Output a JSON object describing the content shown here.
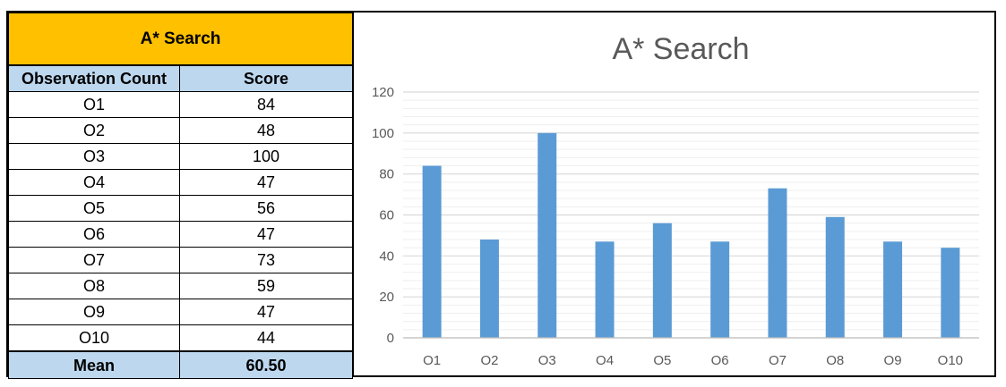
{
  "table": {
    "title": "A* Search",
    "headers": [
      "Observation Count",
      "Score"
    ],
    "rows": [
      {
        "label": "O1",
        "score": "84"
      },
      {
        "label": "O2",
        "score": "48"
      },
      {
        "label": "O3",
        "score": "100"
      },
      {
        "label": "O4",
        "score": "47"
      },
      {
        "label": "O5",
        "score": "56"
      },
      {
        "label": "O6",
        "score": "47"
      },
      {
        "label": "O7",
        "score": "73"
      },
      {
        "label": "O8",
        "score": "59"
      },
      {
        "label": "O9",
        "score": "47"
      },
      {
        "label": "O10",
        "score": "44"
      }
    ],
    "footer": {
      "label": "Mean",
      "value": "60.50"
    }
  },
  "chart_data": {
    "type": "bar",
    "title": "A* Search",
    "categories": [
      "O1",
      "O2",
      "O3",
      "O4",
      "O5",
      "O6",
      "O7",
      "O8",
      "O9",
      "O10"
    ],
    "values": [
      84,
      48,
      100,
      47,
      56,
      47,
      73,
      59,
      47,
      44
    ],
    "ylim": [
      0,
      120
    ],
    "yticks": [
      0,
      20,
      40,
      60,
      80,
      100,
      120
    ],
    "grid": true,
    "legend": "none",
    "bar_color": "#5b9bd5",
    "grid_color": "#d9d9d9"
  }
}
